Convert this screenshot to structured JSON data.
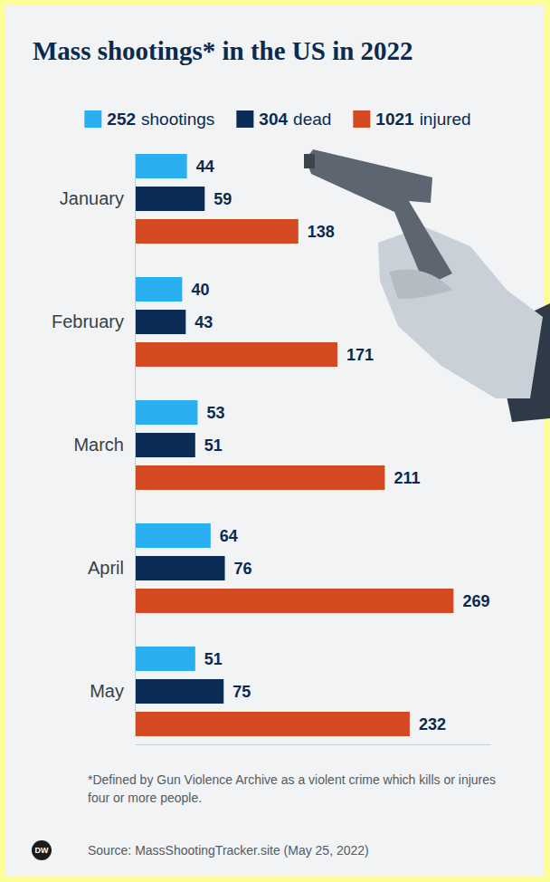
{
  "chart_data": {
    "type": "bar",
    "orientation": "horizontal",
    "title": "Mass shootings* in the US in 2022",
    "categories": [
      "January",
      "February",
      "March",
      "April",
      "May"
    ],
    "series": [
      {
        "name": "shootings",
        "total": 252,
        "color": "#29aef0",
        "values": [
          44,
          40,
          53,
          64,
          51
        ]
      },
      {
        "name": "dead",
        "total": 304,
        "color": "#0b2c55",
        "values": [
          59,
          43,
          51,
          76,
          75
        ]
      },
      {
        "name": "injured",
        "total": 1021,
        "color": "#d34a20",
        "values": [
          138,
          171,
          211,
          269,
          232
        ]
      }
    ],
    "xlim": [
      0,
      300
    ],
    "data_labels": true,
    "tick_labels": "y",
    "grid": false,
    "legend": "top",
    "note": "*Defined by Gun Violence Archive as a violent crime which kills or injures four or more people.",
    "source": "Source: MassShootingTracker.site (May 25, 2022)",
    "logo": "DW"
  }
}
